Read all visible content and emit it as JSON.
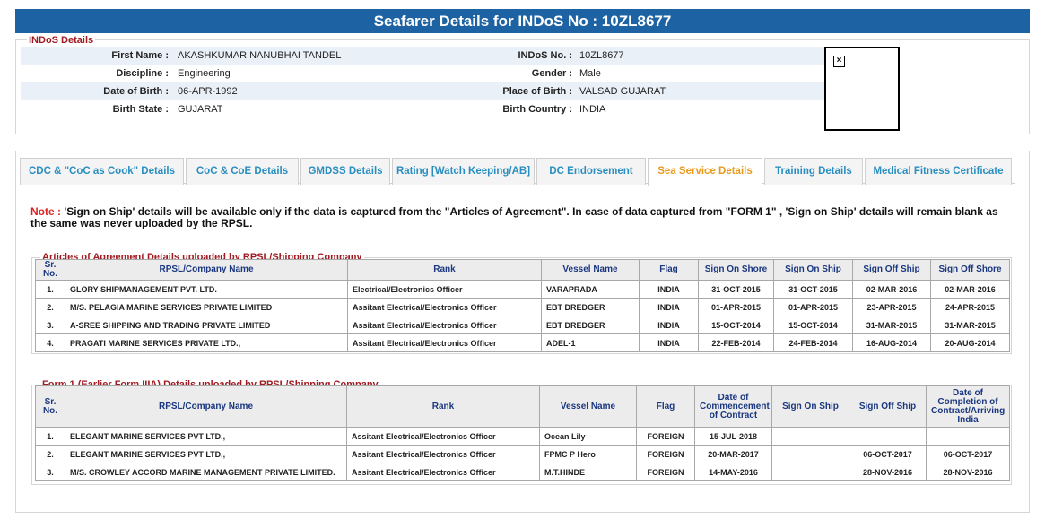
{
  "header": {
    "title": "Seafarer Details for INDoS No : 10ZL8677"
  },
  "indos_details": {
    "legend": "INDoS Details",
    "rows": [
      [
        {
          "label": "First Name :",
          "value": "AKASHKUMAR NANUBHAI TANDEL"
        },
        {
          "label": "INDoS No. :",
          "value": "10ZL8677"
        }
      ],
      [
        {
          "label": "Discipline :",
          "value": "Engineering"
        },
        {
          "label": "Gender :",
          "value": "Male"
        }
      ],
      [
        {
          "label": "Date of Birth :",
          "value": "06-APR-1992"
        },
        {
          "label": "Place of Birth :",
          "value": "VALSAD GUJARAT"
        }
      ],
      [
        {
          "label": "Birth State :",
          "value": "GUJARAT"
        },
        {
          "label": "Birth Country :",
          "value": "INDIA"
        }
      ]
    ]
  },
  "tabs": [
    {
      "label": "CDC & \"CoC as Cook\" Details",
      "active": false
    },
    {
      "label": "CoC & CoE Details",
      "active": false
    },
    {
      "label": "GMDSS Details",
      "active": false
    },
    {
      "label": "Rating [Watch Keeping/AB]",
      "active": false
    },
    {
      "label": "DC Endorsement",
      "active": false
    },
    {
      "label": "Sea Service Details",
      "active": true
    },
    {
      "label": "Training Details",
      "active": false
    },
    {
      "label": "Medical Fitness Certificate",
      "active": false
    }
  ],
  "note": {
    "label": "Note :",
    "text": "'Sign on Ship' details will be available only if the data is captured from the \"Articles of Agreement\". In case of data captured from \"FORM 1\" , 'Sign on Ship' details will remain blank as the same was never uploaded by the RPSL."
  },
  "articles_table": {
    "legend": "Articles of Agreement Details uploaded by RPSL/Shipping Company",
    "columns": [
      "Sr. No.",
      "RPSL/Company Name",
      "Rank",
      "Vessel Name",
      "Flag",
      "Sign On Shore",
      "Sign On Ship",
      "Sign Off Ship",
      "Sign Off Shore"
    ],
    "rows": [
      [
        "1.",
        "GLORY SHIPMANAGEMENT PVT. LTD.",
        "Electrical/Electronics Officer",
        "VARAPRADA",
        "INDIA",
        "31-OCT-2015",
        "31-OCT-2015",
        "02-MAR-2016",
        "02-MAR-2016"
      ],
      [
        "2.",
        "M/S. PELAGIA MARINE SERVICES PRIVATE LIMITED",
        "Assitant Electrical/Electronics Officer",
        "EBT DREDGER",
        "INDIA",
        "01-APR-2015",
        "01-APR-2015",
        "23-APR-2015",
        "24-APR-2015"
      ],
      [
        "3.",
        "A-SREE SHIPPING AND TRADING PRIVATE LIMITED",
        "Assitant Electrical/Electronics Officer",
        "EBT DREDGER",
        "INDIA",
        "15-OCT-2014",
        "15-OCT-2014",
        "31-MAR-2015",
        "31-MAR-2015"
      ],
      [
        "4.",
        "PRAGATI MARINE SERVICES PRIVATE LTD.,",
        "Assitant Electrical/Electronics Officer",
        "ADEL-1",
        "INDIA",
        "22-FEB-2014",
        "24-FEB-2014",
        "16-AUG-2014",
        "20-AUG-2014"
      ]
    ]
  },
  "form1_table": {
    "legend": "Form 1 (Earlier Form IIIA) Details uploaded by RPSL/Shipping Company",
    "columns": [
      "Sr. No.",
      "RPSL/Company Name",
      "Rank",
      "Vessel Name",
      "Flag",
      "Date of Commencement of Contract",
      "Sign On Ship",
      "Sign Off Ship",
      "Date of Completion of Contract/Arriving India"
    ],
    "rows": [
      [
        "1.",
        "ELEGANT MARINE SERVICES PVT LTD.,",
        "Assitant Electrical/Electronics Officer",
        "Ocean Lily",
        "FOREIGN",
        "15-JUL-2018",
        null,
        null,
        null
      ],
      [
        "2.",
        "ELEGANT MARINE SERVICES PVT LTD.,",
        "Assitant Electrical/Electronics Officer",
        "FPMC P Hero",
        "FOREIGN",
        "20-MAR-2017",
        null,
        "06-OCT-2017",
        "06-OCT-2017"
      ],
      [
        "3.",
        "M/S. CROWLEY ACCORD MARINE MANAGEMENT PRIVATE LIMITED.",
        "Assitant Electrical/Electronics Officer",
        "M.T.HINDE",
        "FOREIGN",
        "14-MAY-2016",
        null,
        "28-NOV-2016",
        "28-NOV-2016"
      ]
    ]
  }
}
